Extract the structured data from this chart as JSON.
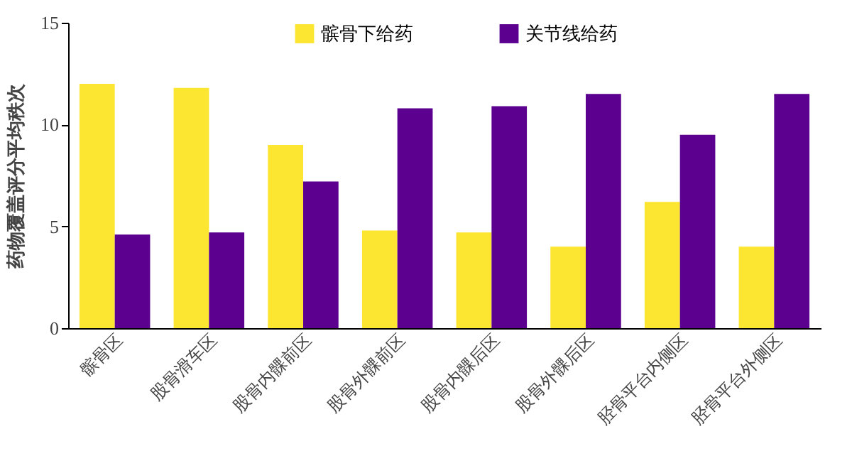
{
  "chart_data": {
    "type": "bar",
    "ylabel": "药物覆盖评分平均秩次",
    "categories": [
      "髌骨区",
      "股骨滑车区",
      "股骨内髁前区",
      "股骨外髁前区",
      "股骨内髁后区",
      "股骨外髁后区",
      "胫骨平台内侧区",
      "胫骨平台外侧区"
    ],
    "series": [
      {
        "name": "髌骨下给药",
        "color": "#fde631",
        "values": [
          12.0,
          11.8,
          9.0,
          4.8,
          4.7,
          4.0,
          6.2,
          4.0
        ]
      },
      {
        "name": "关节线给药",
        "color": "#5c0090",
        "values": [
          4.6,
          4.7,
          7.2,
          10.8,
          10.9,
          11.5,
          9.5,
          11.5
        ]
      }
    ],
    "ylim": [
      0,
      15
    ],
    "yticks": [
      0,
      5,
      10,
      15
    ],
    "legend": "top",
    "grid": false
  }
}
